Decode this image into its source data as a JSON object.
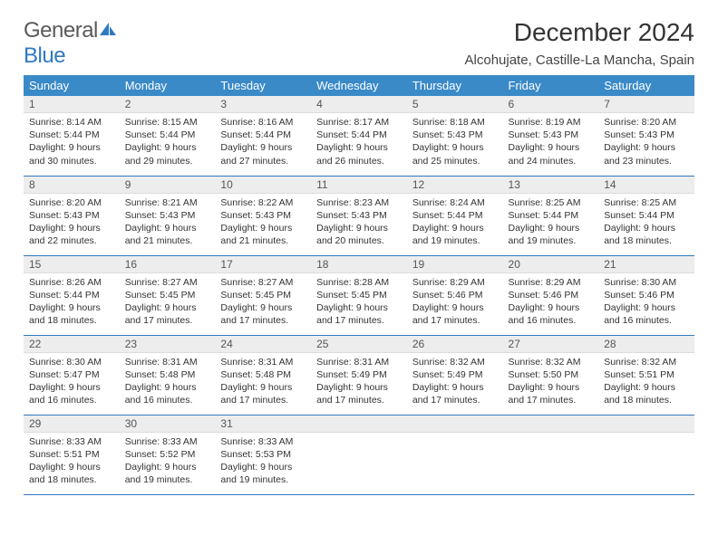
{
  "logo": {
    "text1": "General",
    "text2": "Blue"
  },
  "title": "December 2024",
  "location": "Alcohujate, Castille-La Mancha, Spain",
  "colors": {
    "header_bg": "#3a8ac8",
    "header_fg": "#ffffff",
    "daynum_bg": "#ededed",
    "rule": "#2f79c2",
    "logo_blue": "#2f79c2",
    "logo_gray": "#5a5a5a"
  },
  "weekdays": [
    "Sunday",
    "Monday",
    "Tuesday",
    "Wednesday",
    "Thursday",
    "Friday",
    "Saturday"
  ],
  "weeks": [
    [
      {
        "n": "1",
        "sr": "Sunrise: 8:14 AM",
        "ss": "Sunset: 5:44 PM",
        "d1": "Daylight: 9 hours",
        "d2": "and 30 minutes."
      },
      {
        "n": "2",
        "sr": "Sunrise: 8:15 AM",
        "ss": "Sunset: 5:44 PM",
        "d1": "Daylight: 9 hours",
        "d2": "and 29 minutes."
      },
      {
        "n": "3",
        "sr": "Sunrise: 8:16 AM",
        "ss": "Sunset: 5:44 PM",
        "d1": "Daylight: 9 hours",
        "d2": "and 27 minutes."
      },
      {
        "n": "4",
        "sr": "Sunrise: 8:17 AM",
        "ss": "Sunset: 5:44 PM",
        "d1": "Daylight: 9 hours",
        "d2": "and 26 minutes."
      },
      {
        "n": "5",
        "sr": "Sunrise: 8:18 AM",
        "ss": "Sunset: 5:43 PM",
        "d1": "Daylight: 9 hours",
        "d2": "and 25 minutes."
      },
      {
        "n": "6",
        "sr": "Sunrise: 8:19 AM",
        "ss": "Sunset: 5:43 PM",
        "d1": "Daylight: 9 hours",
        "d2": "and 24 minutes."
      },
      {
        "n": "7",
        "sr": "Sunrise: 8:20 AM",
        "ss": "Sunset: 5:43 PM",
        "d1": "Daylight: 9 hours",
        "d2": "and 23 minutes."
      }
    ],
    [
      {
        "n": "8",
        "sr": "Sunrise: 8:20 AM",
        "ss": "Sunset: 5:43 PM",
        "d1": "Daylight: 9 hours",
        "d2": "and 22 minutes."
      },
      {
        "n": "9",
        "sr": "Sunrise: 8:21 AM",
        "ss": "Sunset: 5:43 PM",
        "d1": "Daylight: 9 hours",
        "d2": "and 21 minutes."
      },
      {
        "n": "10",
        "sr": "Sunrise: 8:22 AM",
        "ss": "Sunset: 5:43 PM",
        "d1": "Daylight: 9 hours",
        "d2": "and 21 minutes."
      },
      {
        "n": "11",
        "sr": "Sunrise: 8:23 AM",
        "ss": "Sunset: 5:43 PM",
        "d1": "Daylight: 9 hours",
        "d2": "and 20 minutes."
      },
      {
        "n": "12",
        "sr": "Sunrise: 8:24 AM",
        "ss": "Sunset: 5:44 PM",
        "d1": "Daylight: 9 hours",
        "d2": "and 19 minutes."
      },
      {
        "n": "13",
        "sr": "Sunrise: 8:25 AM",
        "ss": "Sunset: 5:44 PM",
        "d1": "Daylight: 9 hours",
        "d2": "and 19 minutes."
      },
      {
        "n": "14",
        "sr": "Sunrise: 8:25 AM",
        "ss": "Sunset: 5:44 PM",
        "d1": "Daylight: 9 hours",
        "d2": "and 18 minutes."
      }
    ],
    [
      {
        "n": "15",
        "sr": "Sunrise: 8:26 AM",
        "ss": "Sunset: 5:44 PM",
        "d1": "Daylight: 9 hours",
        "d2": "and 18 minutes."
      },
      {
        "n": "16",
        "sr": "Sunrise: 8:27 AM",
        "ss": "Sunset: 5:45 PM",
        "d1": "Daylight: 9 hours",
        "d2": "and 17 minutes."
      },
      {
        "n": "17",
        "sr": "Sunrise: 8:27 AM",
        "ss": "Sunset: 5:45 PM",
        "d1": "Daylight: 9 hours",
        "d2": "and 17 minutes."
      },
      {
        "n": "18",
        "sr": "Sunrise: 8:28 AM",
        "ss": "Sunset: 5:45 PM",
        "d1": "Daylight: 9 hours",
        "d2": "and 17 minutes."
      },
      {
        "n": "19",
        "sr": "Sunrise: 8:29 AM",
        "ss": "Sunset: 5:46 PM",
        "d1": "Daylight: 9 hours",
        "d2": "and 17 minutes."
      },
      {
        "n": "20",
        "sr": "Sunrise: 8:29 AM",
        "ss": "Sunset: 5:46 PM",
        "d1": "Daylight: 9 hours",
        "d2": "and 16 minutes."
      },
      {
        "n": "21",
        "sr": "Sunrise: 8:30 AM",
        "ss": "Sunset: 5:46 PM",
        "d1": "Daylight: 9 hours",
        "d2": "and 16 minutes."
      }
    ],
    [
      {
        "n": "22",
        "sr": "Sunrise: 8:30 AM",
        "ss": "Sunset: 5:47 PM",
        "d1": "Daylight: 9 hours",
        "d2": "and 16 minutes."
      },
      {
        "n": "23",
        "sr": "Sunrise: 8:31 AM",
        "ss": "Sunset: 5:48 PM",
        "d1": "Daylight: 9 hours",
        "d2": "and 16 minutes."
      },
      {
        "n": "24",
        "sr": "Sunrise: 8:31 AM",
        "ss": "Sunset: 5:48 PM",
        "d1": "Daylight: 9 hours",
        "d2": "and 17 minutes."
      },
      {
        "n": "25",
        "sr": "Sunrise: 8:31 AM",
        "ss": "Sunset: 5:49 PM",
        "d1": "Daylight: 9 hours",
        "d2": "and 17 minutes."
      },
      {
        "n": "26",
        "sr": "Sunrise: 8:32 AM",
        "ss": "Sunset: 5:49 PM",
        "d1": "Daylight: 9 hours",
        "d2": "and 17 minutes."
      },
      {
        "n": "27",
        "sr": "Sunrise: 8:32 AM",
        "ss": "Sunset: 5:50 PM",
        "d1": "Daylight: 9 hours",
        "d2": "and 17 minutes."
      },
      {
        "n": "28",
        "sr": "Sunrise: 8:32 AM",
        "ss": "Sunset: 5:51 PM",
        "d1": "Daylight: 9 hours",
        "d2": "and 18 minutes."
      }
    ],
    [
      {
        "n": "29",
        "sr": "Sunrise: 8:33 AM",
        "ss": "Sunset: 5:51 PM",
        "d1": "Daylight: 9 hours",
        "d2": "and 18 minutes."
      },
      {
        "n": "30",
        "sr": "Sunrise: 8:33 AM",
        "ss": "Sunset: 5:52 PM",
        "d1": "Daylight: 9 hours",
        "d2": "and 19 minutes."
      },
      {
        "n": "31",
        "sr": "Sunrise: 8:33 AM",
        "ss": "Sunset: 5:53 PM",
        "d1": "Daylight: 9 hours",
        "d2": "and 19 minutes."
      },
      {
        "empty": true
      },
      {
        "empty": true
      },
      {
        "empty": true
      },
      {
        "empty": true
      }
    ]
  ]
}
